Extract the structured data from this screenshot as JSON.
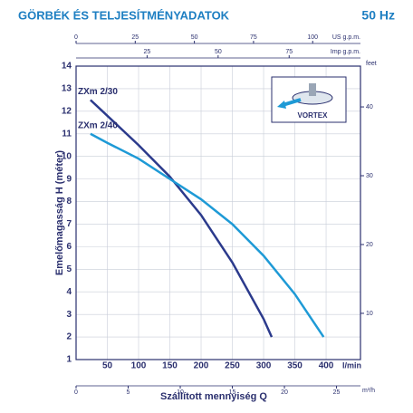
{
  "chart_data": {
    "type": "line",
    "title": "GÖRBÉK ÉS TELJESÍTMÉNYADATOK",
    "subtitle": "50 Hz",
    "xlabel": "Szállított mennyiség Q",
    "x_unit": "l/min",
    "ylabel": "Emelőmagasság H (méter)",
    "xlim": [
      0,
      455
    ],
    "xticks": [
      50,
      100,
      150,
      200,
      250,
      300,
      350,
      400
    ],
    "ylim": [
      1,
      14
    ],
    "yticks": [
      1,
      2,
      3,
      4,
      5,
      6,
      7,
      8,
      9,
      10,
      11,
      12,
      13,
      14
    ],
    "y2label": "feet",
    "y2lim": [
      3.28,
      45.93
    ],
    "y2ticks": [
      10,
      20,
      30,
      40
    ],
    "secondary_x_axes": [
      {
        "label": "US g.p.m.",
        "lim": [
          0,
          120.2
        ],
        "ticks": [
          0,
          25,
          50,
          75,
          100
        ]
      },
      {
        "label": "Imp g.p.m.",
        "lim": [
          0,
          100.1
        ],
        "ticks": [
          25,
          50,
          75
        ]
      },
      {
        "label": "m³/h",
        "lim": [
          0,
          27.3
        ],
        "ticks": [
          0,
          5,
          10,
          15,
          20,
          25
        ]
      }
    ],
    "grid": true,
    "icon_label": "VORTEX",
    "series": [
      {
        "name": "ZXm 2/30",
        "color": "#2b3a8c",
        "x": [
          23,
          50,
          100,
          150,
          200,
          250,
          300,
          313
        ],
        "values": [
          12.5,
          11.8,
          10.5,
          9.1,
          7.4,
          5.3,
          2.8,
          2
        ]
      },
      {
        "name": "ZXm 2/40",
        "color": "#1e9ad6",
        "x": [
          23,
          50,
          100,
          150,
          200,
          250,
          300,
          350,
          396
        ],
        "values": [
          11,
          10.6,
          9.9,
          9,
          8.1,
          7,
          5.6,
          3.9,
          2
        ]
      }
    ]
  }
}
